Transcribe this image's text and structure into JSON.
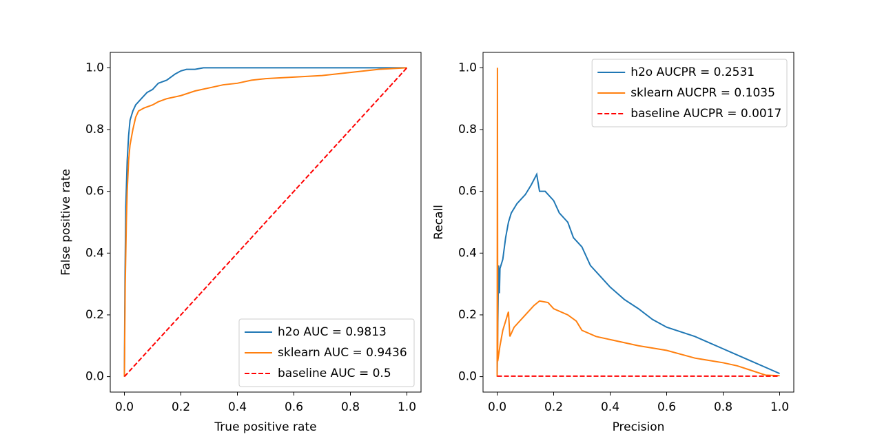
{
  "chart_data": [
    {
      "type": "line",
      "xlabel": "True positive rate",
      "ylabel": "False positive rate",
      "xlim": [
        -0.05,
        1.05
      ],
      "ylim": [
        -0.05,
        1.05
      ],
      "xticks": [
        {
          "value": 0,
          "label": "0.0"
        },
        0.2,
        0.4,
        0.6,
        0.8,
        {
          "value": 1,
          "label": "1.0"
        }
      ],
      "yticks": [
        {
          "value": 0,
          "label": "0.0"
        },
        0.2,
        0.4,
        0.6,
        0.8,
        {
          "value": 1,
          "label": "1.0"
        }
      ],
      "legend": "lower right",
      "series": [
        {
          "name": "h2o AUC = 0.9813",
          "color": "#1f77b4",
          "linestyle": "solid",
          "x": [
            0,
            0.002,
            0.005,
            0.01,
            0.015,
            0.02,
            0.03,
            0.04,
            0.05,
            0.06,
            0.08,
            0.1,
            0.12,
            0.15,
            0.18,
            0.2,
            0.22,
            0.25,
            0.28,
            0.4,
            0.6,
            0.8,
            0.9,
            1.0
          ],
          "values": [
            0,
            0.3,
            0.55,
            0.7,
            0.78,
            0.83,
            0.86,
            0.88,
            0.89,
            0.9,
            0.92,
            0.93,
            0.95,
            0.96,
            0.98,
            0.99,
            0.995,
            0.995,
            1.0,
            1.0,
            1.0,
            1.0,
            1.0,
            1.0
          ]
        },
        {
          "name": "sklearn AUC = 0.9436",
          "color": "#ff7f0e",
          "linestyle": "solid",
          "x": [
            0,
            0.003,
            0.007,
            0.01,
            0.015,
            0.02,
            0.03,
            0.04,
            0.05,
            0.07,
            0.1,
            0.12,
            0.15,
            0.2,
            0.25,
            0.3,
            0.35,
            0.4,
            0.45,
            0.5,
            0.6,
            0.7,
            0.8,
            0.85,
            0.9,
            1.0
          ],
          "values": [
            0,
            0.3,
            0.5,
            0.6,
            0.7,
            0.75,
            0.8,
            0.84,
            0.86,
            0.87,
            0.88,
            0.89,
            0.9,
            0.91,
            0.925,
            0.935,
            0.945,
            0.95,
            0.96,
            0.965,
            0.97,
            0.975,
            0.985,
            0.99,
            0.995,
            1.0
          ]
        },
        {
          "name": "baseline AUC = 0.5",
          "color": "#ff0000",
          "linestyle": "dashed",
          "x": [
            0,
            1
          ],
          "values": [
            0,
            1
          ]
        }
      ]
    },
    {
      "type": "line",
      "xlabel": "Precision",
      "ylabel": "Recall",
      "xlim": [
        -0.05,
        1.05
      ],
      "ylim": [
        -0.05,
        1.05
      ],
      "xticks": [
        {
          "value": 0,
          "label": "0.0"
        },
        0.2,
        0.4,
        0.6,
        0.8,
        {
          "value": 1,
          "label": "1.0"
        }
      ],
      "yticks": [
        {
          "value": 0,
          "label": "0.0"
        },
        0.2,
        0.4,
        0.6,
        0.8,
        {
          "value": 1,
          "label": "1.0"
        }
      ],
      "legend": "upper right",
      "series": [
        {
          "name": "h2o AUCPR = 0.2531",
          "color": "#1f77b4",
          "linestyle": "solid",
          "x": [
            0,
            0.005,
            0.008,
            0.01,
            0.02,
            0.03,
            0.04,
            0.05,
            0.07,
            0.1,
            0.12,
            0.14,
            0.15,
            0.17,
            0.2,
            0.22,
            0.25,
            0.27,
            0.3,
            0.33,
            0.36,
            0.4,
            0.45,
            0.5,
            0.55,
            0.6,
            0.7,
            0.8,
            0.9,
            0.95,
            1.0
          ],
          "values": [
            0,
            0.36,
            0.27,
            0.35,
            0.38,
            0.45,
            0.5,
            0.53,
            0.56,
            0.59,
            0.62,
            0.655,
            0.6,
            0.6,
            0.57,
            0.53,
            0.5,
            0.45,
            0.42,
            0.36,
            0.33,
            0.29,
            0.25,
            0.22,
            0.185,
            0.16,
            0.13,
            0.09,
            0.05,
            0.03,
            0.01
          ]
        },
        {
          "name": "sklearn AUCPR = 0.1035",
          "color": "#ff7f0e",
          "linestyle": "solid",
          "x": [
            0,
            0.001,
            0.002,
            0.01,
            0.02,
            0.03,
            0.04,
            0.045,
            0.06,
            0.1,
            0.13,
            0.15,
            0.18,
            0.2,
            0.25,
            0.28,
            0.3,
            0.35,
            0.4,
            0.5,
            0.6,
            0.7,
            0.8,
            0.85,
            0.9,
            0.95,
            1.0
          ],
          "values": [
            0,
            1.0,
            0.05,
            0.1,
            0.15,
            0.18,
            0.21,
            0.13,
            0.16,
            0.2,
            0.23,
            0.245,
            0.24,
            0.22,
            0.2,
            0.18,
            0.15,
            0.13,
            0.12,
            0.1,
            0.085,
            0.06,
            0.045,
            0.035,
            0.02,
            0.005,
            0.003
          ]
        },
        {
          "name": "baseline AUCPR = 0.0017",
          "color": "#ff0000",
          "linestyle": "dashed",
          "x": [
            0,
            1
          ],
          "values": [
            0.0017,
            0.0017
          ]
        }
      ]
    }
  ]
}
